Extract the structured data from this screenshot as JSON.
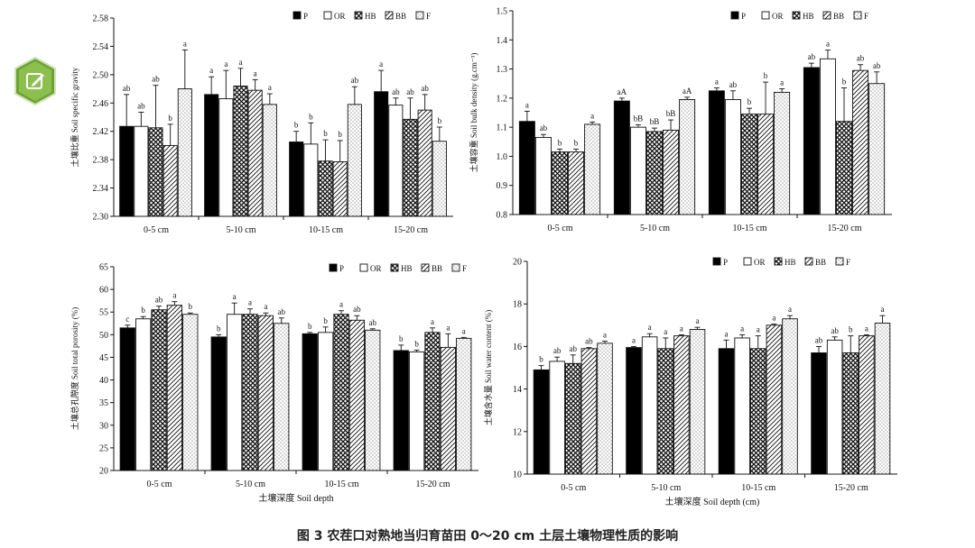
{
  "figure": {
    "caption_label": "图 3",
    "caption_text": "农茬口对熟地当归育苗田 0～20  cm 土层土壤物理性质的影响",
    "icon": "edit-icon",
    "accent_color": "#7cae3e"
  },
  "chart_data": [
    {
      "type": "bar",
      "ylabel": "土壤比重  Soil specific gravity",
      "xlabel": "",
      "ylim": [
        2.3,
        2.58
      ],
      "yticks": [
        "2.30",
        "2.34",
        "2.38",
        "2.42",
        "2.46",
        "2.50",
        "2.54",
        "2.58"
      ],
      "categories": [
        "0-5 cm",
        "5-10 cm",
        "10-15 cm",
        "15-20 cm"
      ],
      "series": [
        {
          "name": "P",
          "values": [
            2.427,
            2.472,
            2.405,
            2.476
          ],
          "errors": [
            0.045,
            0.025,
            0.015,
            0.03
          ]
        },
        {
          "name": "OR",
          "values": [
            2.427,
            2.466,
            2.402,
            2.457
          ],
          "errors": [
            0.02,
            0.04,
            0.03,
            0.01
          ]
        },
        {
          "name": "HB",
          "values": [
            2.425,
            2.484,
            2.378,
            2.437
          ],
          "errors": [
            0.06,
            0.025,
            0.03,
            0.03
          ]
        },
        {
          "name": "BB",
          "values": [
            2.4,
            2.478,
            2.377,
            2.45
          ],
          "errors": [
            0.03,
            0.015,
            0.03,
            0.022
          ]
        },
        {
          "name": "F",
          "values": [
            2.48,
            2.458,
            2.458,
            2.406
          ],
          "errors": [
            0.055,
            0.015,
            0.025,
            0.02
          ]
        }
      ],
      "letters": [
        [
          "ab",
          "ab",
          "ab",
          "b",
          "a"
        ],
        [
          "a",
          "a",
          "a",
          "a",
          "a"
        ],
        [
          "b",
          "b",
          "b",
          "b",
          "ab"
        ],
        [
          "a",
          "ab",
          "ab",
          "ab",
          "b"
        ]
      ]
    },
    {
      "type": "bar",
      "ylabel": "土壤容重  Soil bulk density (g.cm⁻³)",
      "xlabel": "",
      "ylim": [
        0.8,
        1.5
      ],
      "yticks": [
        "0.8",
        "0.9",
        "1.0",
        "1.1",
        "1.2",
        "1.3",
        "1.4",
        "1.5"
      ],
      "categories": [
        "0-5 cm",
        "5-10 cm",
        "10-15 cm",
        "15-20 cm"
      ],
      "series": [
        {
          "name": "P",
          "values": [
            1.12,
            1.19,
            1.225,
            1.305
          ],
          "errors": [
            0.035,
            0.01,
            0.01,
            0.015
          ]
        },
        {
          "name": "OR",
          "values": [
            1.065,
            1.1,
            1.195,
            1.335
          ],
          "errors": [
            0.01,
            0.008,
            0.03,
            0.03
          ]
        },
        {
          "name": "HB",
          "values": [
            1.015,
            1.085,
            1.145,
            1.12
          ],
          "errors": [
            0.01,
            0.012,
            0.02,
            0.115
          ]
        },
        {
          "name": "BB",
          "values": [
            1.015,
            1.09,
            1.145,
            1.295
          ],
          "errors": [
            0.01,
            0.035,
            0.11,
            0.02
          ]
        },
        {
          "name": "F",
          "values": [
            1.11,
            1.195,
            1.22,
            1.25
          ],
          "errors": [
            0.008,
            0.008,
            0.012,
            0.04
          ]
        }
      ],
      "letters": [
        [
          "a",
          "ab",
          "b",
          "b",
          "a"
        ],
        [
          "aA",
          "bB",
          "bB",
          "bB",
          "aA"
        ],
        [
          "a",
          "ab",
          "b",
          "b",
          "a"
        ],
        [
          "ab",
          "a",
          "b",
          "ab",
          "ab"
        ]
      ]
    },
    {
      "type": "bar",
      "ylabel": "土壤总孔隙度  Soil total porosity (%)",
      "xlabel": "土壤深度 Soil depth",
      "ylim": [
        20,
        65
      ],
      "yticks": [
        "20",
        "25",
        "30",
        "35",
        "40",
        "45",
        "50",
        "55",
        "60",
        "65"
      ],
      "categories": [
        "0-5 cm",
        "5-10 cm",
        "10-15 cm",
        "15-20 cm"
      ],
      "series": [
        {
          "name": "P",
          "values": [
            51.5,
            49.5,
            50.2,
            46.5
          ],
          "errors": [
            0.6,
            0.5,
            0.3,
            1.2
          ]
        },
        {
          "name": "OR",
          "values": [
            53.5,
            54.5,
            50.5,
            46.2
          ],
          "errors": [
            0.5,
            2.5,
            1.2,
            0.4
          ]
        },
        {
          "name": "HB",
          "values": [
            55.5,
            54.5,
            54.5,
            50.5
          ],
          "errors": [
            0.8,
            1.2,
            0.8,
            1.0
          ]
        },
        {
          "name": "BB",
          "values": [
            56.5,
            54.2,
            53.2,
            47.2
          ],
          "errors": [
            0.8,
            0.6,
            1.0,
            3.0
          ]
        },
        {
          "name": "F",
          "values": [
            54.5,
            52.5,
            51.0,
            49.2
          ],
          "errors": [
            0.3,
            1.2,
            0.3,
            0.2
          ]
        }
      ],
      "letters": [
        [
          "c",
          "b",
          "ab",
          "a",
          "b"
        ],
        [
          "b",
          "a",
          "a",
          "a",
          "ab"
        ],
        [
          "b",
          "b",
          "a",
          "ab",
          "ab"
        ],
        [
          "b",
          "b",
          "a",
          "a",
          "a"
        ]
      ]
    },
    {
      "type": "bar",
      "ylabel": "土壤含水量  Soil water content (%)",
      "xlabel": "土壤深度 Soil depth (cm)",
      "ylim": [
        10,
        20
      ],
      "yticks": [
        "10",
        "12",
        "14",
        "16",
        "18",
        "20"
      ],
      "categories": [
        "0-5 cm",
        "5-10 cm",
        "10-15 cm",
        "15-20 cm"
      ],
      "series": [
        {
          "name": "P",
          "values": [
            14.9,
            15.95,
            15.9,
            15.7
          ],
          "errors": [
            0.2,
            0.05,
            0.4,
            0.3
          ]
        },
        {
          "name": "OR",
          "values": [
            15.3,
            16.45,
            16.4,
            16.3
          ],
          "errors": [
            0.2,
            0.15,
            0.15,
            0.15
          ]
        },
        {
          "name": "HB",
          "values": [
            15.2,
            15.9,
            15.9,
            15.7
          ],
          "errors": [
            0.4,
            0.5,
            0.6,
            0.8
          ]
        },
        {
          "name": "BB",
          "values": [
            15.9,
            16.5,
            17.0,
            16.5
          ],
          "errors": [
            0.05,
            0.05,
            0.05,
            0.05
          ]
        },
        {
          "name": "F",
          "values": [
            16.15,
            16.8,
            17.3,
            17.1
          ],
          "errors": [
            0.1,
            0.1,
            0.15,
            0.35
          ]
        }
      ],
      "letters": [
        [
          "b",
          "ab",
          "ab",
          "ab",
          "a"
        ],
        [
          "a",
          "a",
          "a",
          "a",
          "a"
        ],
        [
          "a",
          "a",
          "a",
          "a",
          "a"
        ],
        [
          "ab",
          "ab",
          "b",
          "a",
          "a"
        ]
      ]
    }
  ]
}
